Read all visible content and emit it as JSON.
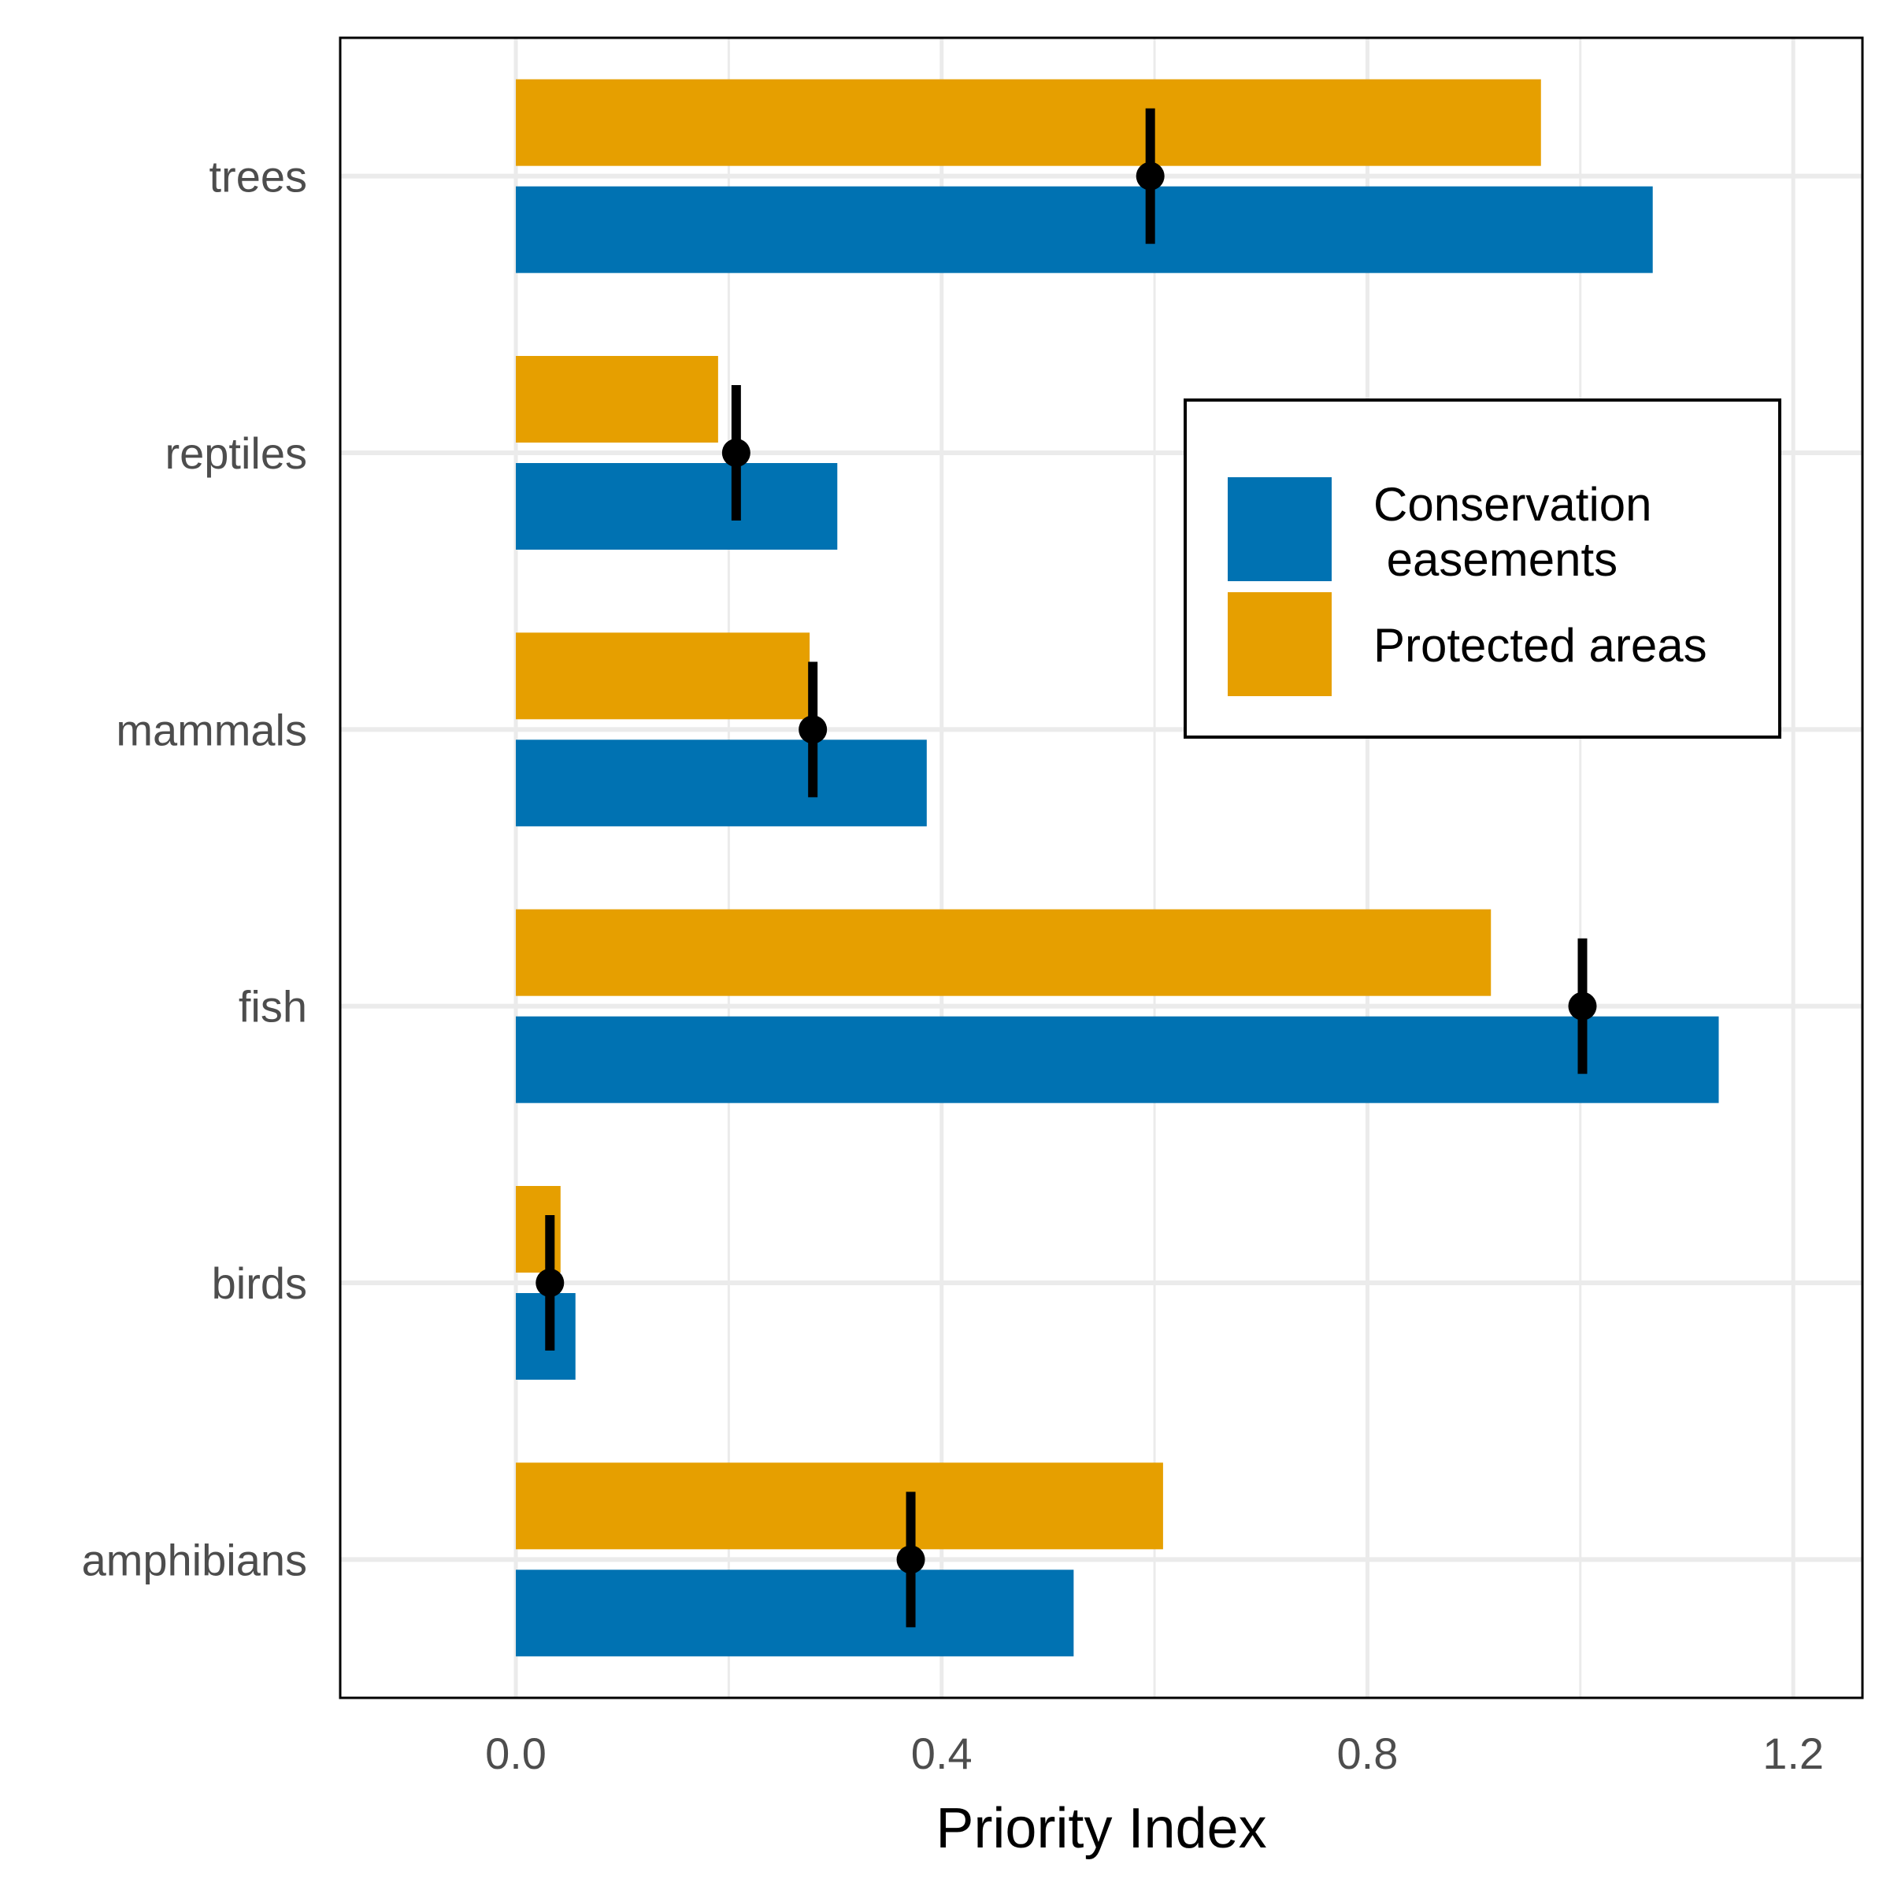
{
  "chart_data": {
    "type": "bar",
    "orientation": "horizontal",
    "title": "",
    "xlabel": "Priority Index",
    "ylabel": "",
    "xlim": [
      -0.165,
      1.265
    ],
    "x_ticks": [
      0.0,
      0.4,
      0.8,
      1.2
    ],
    "x_tick_labels": [
      "0.0",
      "0.4",
      "0.8",
      "1.2"
    ],
    "categories": [
      "trees",
      "reptiles",
      "mammals",
      "fish",
      "birds",
      "amphibians"
    ],
    "series": [
      {
        "name": "Conservation\n easements",
        "color": "#0072B2",
        "values": [
          1.068,
          0.302,
          0.386,
          1.13,
          0.056,
          0.524
        ]
      },
      {
        "name": "Protected areas",
        "color": "#E69F00",
        "values": [
          0.963,
          0.19,
          0.276,
          0.916,
          0.042,
          0.608
        ]
      }
    ],
    "points": {
      "color": "#000000",
      "values": [
        0.596,
        0.207,
        0.279,
        1.002,
        0.032,
        0.371
      ],
      "error_low": [
        0.592,
        0.205,
        0.277,
        1.0,
        0.031,
        0.371
      ],
      "error_high": [
        0.6,
        0.209,
        0.281,
        1.004,
        0.033,
        0.371
      ]
    },
    "grid": true,
    "legend_position": "top-right",
    "legend_labels": [
      "Conservation",
      " easements",
      "Protected areas"
    ]
  }
}
